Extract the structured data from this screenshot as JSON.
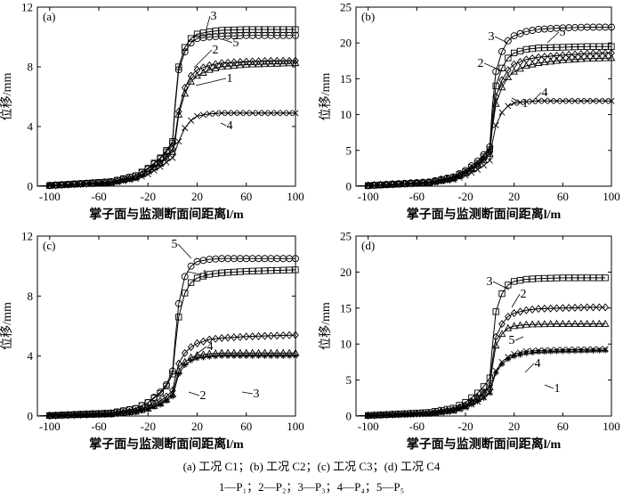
{
  "caption_line1": "(a) 工况 C1；(b) 工况 C2；(c) 工况 C3；(d) 工况 C4",
  "caption_line2": "1—P₁；2—P₂；3—P₃；4—P₄；5—P₅",
  "chart_data": [
    {
      "type": "line",
      "panel_label": "(a)",
      "xlabel": "掌子面与监测断面间距离l/m",
      "ylabel": "位移/mm",
      "xlim": [
        -110,
        100
      ],
      "ylim": [
        0,
        12
      ],
      "xticks": [
        -100,
        -60,
        -20,
        20,
        60,
        100
      ],
      "yticks": [
        0,
        4,
        8,
        12
      ],
      "series": [
        {
          "name": "1",
          "marker": "triangle",
          "x": [
            -110,
            -50,
            -30,
            -20,
            -10,
            -5,
            0,
            2,
            5,
            10,
            15,
            20,
            30,
            40,
            60,
            80,
            100
          ],
          "y": [
            0,
            0.25,
            0.6,
            1.0,
            1.5,
            1.9,
            2.3,
            3.0,
            4.8,
            6.2,
            7.0,
            7.4,
            7.8,
            8.0,
            8.15,
            8.2,
            8.25
          ]
        },
        {
          "name": "2",
          "marker": "diamond",
          "x": [
            -110,
            -50,
            -30,
            -20,
            -10,
            -5,
            0,
            2,
            5,
            10,
            15,
            20,
            30,
            40,
            60,
            80,
            100
          ],
          "y": [
            0,
            0.25,
            0.6,
            1.0,
            1.6,
            2.0,
            2.5,
            3.3,
            5.0,
            6.6,
            7.4,
            7.8,
            8.1,
            8.25,
            8.35,
            8.4,
            8.4
          ]
        },
        {
          "name": "3",
          "marker": "square",
          "x": [
            -110,
            -50,
            -30,
            -20,
            -10,
            -5,
            0,
            2,
            5,
            10,
            15,
            20,
            30,
            40,
            60,
            80,
            100
          ],
          "y": [
            0,
            0.3,
            0.7,
            1.2,
            1.9,
            2.4,
            3.0,
            5.5,
            8.0,
            9.3,
            9.9,
            10.2,
            10.35,
            10.45,
            10.5,
            10.5,
            10.5
          ]
        },
        {
          "name": "4",
          "marker": "cross",
          "x": [
            -110,
            -50,
            -30,
            -20,
            -10,
            -5,
            0,
            2,
            5,
            10,
            15,
            20,
            30,
            40,
            60,
            80,
            100
          ],
          "y": [
            0,
            0.2,
            0.5,
            0.8,
            1.3,
            1.6,
            1.9,
            2.3,
            3.0,
            3.9,
            4.4,
            4.7,
            4.85,
            4.9,
            4.9,
            4.9,
            4.9
          ]
        },
        {
          "name": "5",
          "marker": "circle",
          "x": [
            -110,
            -50,
            -30,
            -20,
            -10,
            -5,
            0,
            2,
            5,
            10,
            15,
            20,
            30,
            40,
            60,
            80,
            100
          ],
          "y": [
            0,
            0.3,
            0.7,
            1.15,
            1.85,
            2.3,
            2.9,
            5.3,
            7.8,
            9.0,
            9.6,
            9.9,
            10.0,
            10.05,
            10.1,
            10.1,
            10.1
          ]
        }
      ]
    },
    {
      "type": "line",
      "panel_label": "(b)",
      "xlabel": "掌子面与监测断面间距离l/m",
      "ylabel": "位移/mm",
      "xlim": [
        -110,
        100
      ],
      "ylim": [
        0,
        25
      ],
      "xticks": [
        -100,
        -60,
        -20,
        20,
        60,
        100
      ],
      "yticks": [
        0,
        5,
        10,
        15,
        20,
        25
      ],
      "series": [
        {
          "name": "1",
          "marker": "triangle",
          "x": [
            -110,
            -50,
            -30,
            -20,
            -10,
            -5,
            0,
            2,
            5,
            10,
            15,
            20,
            30,
            40,
            60,
            80,
            100
          ],
          "y": [
            0,
            0.5,
            1.1,
            1.8,
            2.9,
            3.6,
            4.5,
            8.0,
            11.5,
            13.8,
            15.2,
            16.0,
            16.8,
            17.2,
            17.6,
            17.8,
            17.9
          ]
        },
        {
          "name": "2",
          "marker": "diamond",
          "x": [
            -110,
            -50,
            -30,
            -20,
            -10,
            -5,
            0,
            2,
            5,
            10,
            15,
            20,
            30,
            40,
            60,
            80,
            100
          ],
          "y": [
            0,
            0.5,
            1.1,
            1.9,
            3.0,
            3.8,
            4.8,
            8.5,
            12.5,
            14.8,
            16.2,
            17.0,
            17.7,
            18.0,
            18.3,
            18.5,
            18.6
          ]
        },
        {
          "name": "3",
          "marker": "circle",
          "x": [
            -110,
            -50,
            -30,
            -20,
            -10,
            -5,
            0,
            2,
            5,
            10,
            15,
            20,
            30,
            40,
            60,
            80,
            100
          ],
          "y": [
            0,
            0.6,
            1.3,
            2.2,
            3.5,
            4.4,
            5.5,
            11.0,
            16.0,
            18.8,
            20.3,
            21.0,
            21.6,
            21.9,
            22.1,
            22.2,
            22.2
          ]
        },
        {
          "name": "4",
          "marker": "cross",
          "x": [
            -110,
            -50,
            -30,
            -20,
            -10,
            -5,
            0,
            2,
            5,
            10,
            15,
            20,
            30,
            40,
            60,
            80,
            100
          ],
          "y": [
            0,
            0.4,
            0.9,
            1.5,
            2.3,
            2.9,
            3.6,
            6.0,
            8.5,
            10.3,
            11.2,
            11.6,
            11.8,
            11.9,
            11.9,
            11.9,
            11.9
          ]
        },
        {
          "name": "5",
          "marker": "square",
          "x": [
            -110,
            -50,
            -30,
            -20,
            -10,
            -5,
            0,
            2,
            5,
            10,
            15,
            20,
            30,
            40,
            60,
            80,
            100
          ],
          "y": [
            0,
            0.5,
            1.2,
            2.0,
            3.2,
            4.1,
            5.1,
            9.5,
            14.0,
            16.5,
            17.9,
            18.6,
            19.1,
            19.3,
            19.4,
            19.5,
            19.5
          ]
        }
      ]
    },
    {
      "type": "line",
      "panel_label": "(c)",
      "xlabel": "掌子面与监测断面间距离l/m",
      "ylabel": "位移/mm",
      "xlim": [
        -110,
        100
      ],
      "ylim": [
        0,
        12
      ],
      "xticks": [
        -100,
        -60,
        -20,
        20,
        60,
        100
      ],
      "yticks": [
        0,
        4,
        8,
        12
      ],
      "series": [
        {
          "name": "1",
          "marker": "square",
          "x": [
            -110,
            -50,
            -30,
            -20,
            -10,
            -5,
            0,
            2,
            5,
            10,
            15,
            20,
            30,
            40,
            60,
            80,
            100
          ],
          "y": [
            0,
            0.2,
            0.5,
            0.9,
            1.5,
            2.0,
            2.8,
            4.5,
            6.6,
            8.2,
            8.9,
            9.2,
            9.45,
            9.55,
            9.65,
            9.7,
            9.75
          ]
        },
        {
          "name": "2",
          "marker": "diamond",
          "x": [
            -110,
            -50,
            -30,
            -20,
            -10,
            -5,
            0,
            2,
            5,
            10,
            15,
            20,
            30,
            40,
            60,
            80,
            100
          ],
          "y": [
            0,
            0.15,
            0.35,
            0.6,
            1.0,
            1.3,
            1.7,
            2.5,
            3.5,
            4.2,
            4.6,
            4.85,
            5.1,
            5.2,
            5.3,
            5.35,
            5.4
          ]
        },
        {
          "name": "3",
          "marker": "star",
          "x": [
            -110,
            -50,
            -30,
            -20,
            -10,
            -5,
            0,
            2,
            5,
            10,
            15,
            20,
            30,
            40,
            60,
            80,
            100
          ],
          "y": [
            0,
            0.1,
            0.25,
            0.45,
            0.75,
            1.0,
            1.3,
            1.9,
            2.8,
            3.4,
            3.7,
            3.85,
            3.95,
            4.0,
            4.0,
            4.0,
            4.0
          ]
        },
        {
          "name": "4",
          "marker": "triangle",
          "x": [
            -110,
            -50,
            -30,
            -20,
            -10,
            -5,
            0,
            2,
            5,
            10,
            15,
            20,
            30,
            40,
            60,
            80,
            100
          ],
          "y": [
            0,
            0.12,
            0.3,
            0.5,
            0.85,
            1.1,
            1.45,
            2.1,
            3.0,
            3.6,
            3.9,
            4.05,
            4.15,
            4.2,
            4.2,
            4.2,
            4.2
          ]
        },
        {
          "name": "5",
          "marker": "circle",
          "x": [
            -110,
            -50,
            -30,
            -20,
            -10,
            -5,
            0,
            2,
            5,
            10,
            15,
            20,
            30,
            40,
            60,
            80,
            100
          ],
          "y": [
            0,
            0.2,
            0.5,
            0.9,
            1.6,
            2.1,
            3.0,
            5.0,
            7.5,
            9.3,
            10.0,
            10.3,
            10.45,
            10.5,
            10.5,
            10.5,
            10.5
          ]
        }
      ]
    },
    {
      "type": "line",
      "panel_label": "(d)",
      "xlabel": "掌子面与监测断面间距离l/m",
      "ylabel": "位移/mm",
      "xlim": [
        -110,
        100
      ],
      "ylim": [
        0,
        25
      ],
      "xticks": [
        -100,
        -60,
        -20,
        20,
        60,
        100
      ],
      "yticks": [
        0,
        5,
        10,
        15,
        20,
        25
      ],
      "series": [
        {
          "name": "1",
          "marker": "star",
          "x": [
            -110,
            -50,
            -30,
            -20,
            -10,
            -5,
            0,
            2,
            5,
            10,
            15,
            20,
            30,
            40,
            60,
            80,
            95
          ],
          "y": [
            0,
            0.3,
            0.7,
            1.2,
            2.0,
            2.5,
            3.2,
            4.5,
            6.0,
            7.2,
            7.9,
            8.3,
            8.7,
            8.9,
            9.0,
            9.05,
            9.1
          ]
        },
        {
          "name": "2",
          "marker": "diamond",
          "x": [
            -110,
            -50,
            -30,
            -20,
            -10,
            -5,
            0,
            2,
            5,
            10,
            15,
            20,
            30,
            40,
            60,
            80,
            95
          ],
          "y": [
            0,
            0.4,
            0.9,
            1.5,
            2.6,
            3.3,
            4.3,
            7.5,
            11.0,
            12.8,
            13.8,
            14.3,
            14.7,
            14.9,
            15.0,
            15.1,
            15.1
          ]
        },
        {
          "name": "3",
          "marker": "square",
          "x": [
            -110,
            -50,
            -30,
            -20,
            -10,
            -5,
            0,
            2,
            5,
            10,
            15,
            20,
            30,
            40,
            60,
            80,
            95
          ],
          "y": [
            0,
            0.5,
            1.1,
            1.9,
            3.2,
            4.1,
            5.3,
            9.5,
            14.5,
            17.0,
            18.2,
            18.7,
            19.0,
            19.1,
            19.2,
            19.2,
            19.2
          ]
        },
        {
          "name": "4",
          "marker": "cross",
          "x": [
            -110,
            -50,
            -30,
            -20,
            -10,
            -5,
            0,
            2,
            5,
            10,
            15,
            20,
            30,
            40,
            60,
            80,
            95
          ],
          "y": [
            0,
            0.3,
            0.7,
            1.2,
            2.0,
            2.6,
            3.3,
            4.7,
            6.3,
            7.5,
            8.2,
            8.6,
            9.0,
            9.1,
            9.2,
            9.25,
            9.3
          ]
        },
        {
          "name": "5",
          "marker": "triangle",
          "x": [
            -110,
            -50,
            -30,
            -20,
            -10,
            -5,
            0,
            2,
            5,
            10,
            15,
            20,
            30,
            40,
            60,
            80,
            95
          ],
          "y": [
            0,
            0.4,
            0.8,
            1.4,
            2.4,
            3.1,
            4.0,
            6.8,
            9.8,
            11.4,
            12.2,
            12.5,
            12.7,
            12.75,
            12.8,
            12.8,
            12.8
          ]
        }
      ]
    }
  ]
}
